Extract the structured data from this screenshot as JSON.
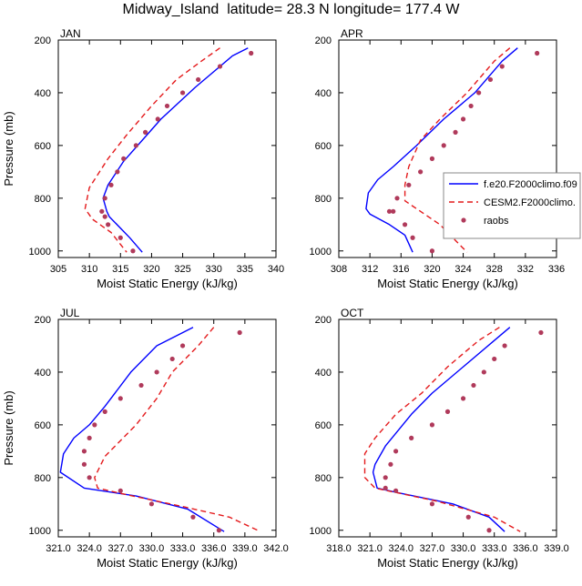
{
  "figure": {
    "title": "Midway_Island  latitude= 28.3 N longitude= 177.4 W"
  },
  "colors": {
    "model_a": "#0000ff",
    "model_b": "#e41a1c",
    "obs": "#b03a5b"
  },
  "chart_data": [
    {
      "type": "line",
      "title": "JAN",
      "xlabel": "Moist Static Energy (kJ/kg)",
      "ylabel": "Pressure (mb)",
      "xlim": [
        305,
        340
      ],
      "ylim": [
        1025,
        200
      ],
      "xticks": [
        "305",
        "310",
        "315",
        "320",
        "325",
        "330",
        "335",
        "340"
      ],
      "xtick_values": [
        305,
        310,
        315,
        320,
        325,
        330,
        335,
        340
      ],
      "yticks": [
        "200",
        "400",
        "600",
        "800",
        "1000"
      ],
      "ytick_values": [
        200,
        400,
        600,
        800,
        1000
      ],
      "grid": false,
      "legend": null,
      "series": [
        {
          "style": "solid",
          "color": "#0000ff",
          "x": [
            335.5,
            333.0,
            327.0,
            321.5,
            318.5,
            315.5,
            313.0,
            312.2,
            312.8,
            313.2,
            316.5,
            318.5
          ],
          "y": [
            230,
            260,
            380,
            500,
            580,
            660,
            750,
            800,
            850,
            870,
            950,
            1005
          ]
        },
        {
          "style": "dashed",
          "color": "#e41a1c",
          "x": [
            331.0,
            328.0,
            324.0,
            320.0,
            316.0,
            313.0,
            310.0,
            309.3,
            310.5,
            313.5,
            316.0
          ],
          "y": [
            230,
            280,
            350,
            450,
            560,
            650,
            760,
            840,
            880,
            930,
            1005
          ]
        },
        {
          "style": "dots",
          "color": "#b03a5b",
          "x": [
            336.0,
            331.0,
            327.5,
            325.0,
            322.5,
            321.0,
            319.0,
            317.5,
            315.5,
            314.5,
            313.5,
            312.5,
            312.0,
            312.5,
            313.0,
            315.0,
            317.0
          ],
          "y": [
            250,
            300,
            350,
            400,
            450,
            500,
            550,
            600,
            650,
            700,
            750,
            800,
            850,
            870,
            900,
            950,
            1000
          ]
        }
      ]
    },
    {
      "type": "line",
      "title": "APR",
      "xlabel": "Moist Static Energy (kJ/kg)",
      "ylabel": "",
      "xlim": [
        308,
        336
      ],
      "ylim": [
        1025,
        200
      ],
      "xticks": [
        "308",
        "312",
        "316",
        "320",
        "324",
        "328",
        "332",
        "336"
      ],
      "xtick_values": [
        308,
        312,
        316,
        320,
        324,
        328,
        332,
        336
      ],
      "yticks": [
        "200",
        "400",
        "600",
        "800",
        "1000"
      ],
      "ytick_values": [
        200,
        400,
        600,
        800,
        1000
      ],
      "grid": false,
      "legend": {
        "position": "right",
        "entries": [
          "f.e20.F2000climo.f09",
          "CESM2.F2000climo.",
          "raobs"
        ]
      },
      "series": [
        {
          "name": "f.e20.F2000climo.f09",
          "style": "solid",
          "color": "#0000ff",
          "x": [
            331.0,
            329.0,
            325.5,
            321.5,
            318.0,
            315.0,
            313.0,
            311.8,
            311.5,
            312.0,
            314.5,
            316.5,
            317.5
          ],
          "y": [
            230,
            280,
            400,
            500,
            600,
            680,
            730,
            780,
            840,
            860,
            900,
            940,
            1005
          ]
        },
        {
          "name": "CESM2.F2000climo.",
          "style": "dashed",
          "color": "#e41a1c",
          "x": [
            330.0,
            328.0,
            324.5,
            321.0,
            318.5,
            317.0,
            316.5,
            316.5,
            317.5,
            321.0,
            324.5
          ],
          "y": [
            230,
            280,
            400,
            500,
            580,
            680,
            750,
            810,
            830,
            900,
            1005
          ]
        },
        {
          "name": "raobs",
          "style": "dots",
          "color": "#b03a5b",
          "x": [
            333.5,
            329.0,
            327.5,
            326.0,
            325.0,
            324.0,
            323.0,
            321.5,
            320.0,
            318.5,
            317.0,
            315.5,
            315.0,
            314.5,
            316.5,
            317.5,
            320.0
          ],
          "y": [
            250,
            300,
            350,
            400,
            450,
            500,
            550,
            600,
            650,
            700,
            750,
            800,
            850,
            850,
            900,
            950,
            1000
          ]
        }
      ]
    },
    {
      "type": "line",
      "title": "JUL",
      "xlabel": "Moist Static Energy (kJ/kg)",
      "ylabel": "Pressure (mb)",
      "xlim": [
        321,
        342
      ],
      "ylim": [
        1025,
        200
      ],
      "xticks": [
        "321.0",
        "324.0",
        "327.0",
        "330.0",
        "333.0",
        "336.0",
        "339.0",
        "342.0"
      ],
      "xtick_values": [
        321,
        324,
        327,
        330,
        333,
        336,
        339,
        342
      ],
      "yticks": [
        "200",
        "400",
        "600",
        "800",
        "1000"
      ],
      "ytick_values": [
        200,
        400,
        600,
        800,
        1000
      ],
      "grid": false,
      "legend": null,
      "series": [
        {
          "style": "solid",
          "color": "#0000ff",
          "x": [
            334.0,
            330.5,
            328.0,
            325.5,
            324.0,
            322.5,
            321.5,
            321.2,
            323.5,
            328.5,
            333.5,
            337.0
          ],
          "y": [
            230,
            300,
            400,
            530,
            600,
            650,
            710,
            780,
            840,
            870,
            920,
            1005
          ]
        },
        {
          "style": "dashed",
          "color": "#e41a1c",
          "x": [
            336.0,
            334.5,
            332.0,
            330.5,
            328.5,
            325.5,
            324.5,
            324.8,
            327.0,
            333.0,
            337.5,
            340.5
          ],
          "y": [
            230,
            300,
            400,
            500,
            600,
            720,
            800,
            840,
            860,
            910,
            950,
            1005
          ]
        },
        {
          "style": "dots",
          "color": "#b03a5b",
          "x": [
            338.5,
            333.0,
            332.0,
            330.5,
            329.0,
            327.0,
            325.5,
            324.5,
            324.0,
            323.5,
            323.5,
            324.0,
            327.0,
            330.0,
            334.0,
            336.5
          ],
          "y": [
            250,
            300,
            350,
            400,
            450,
            500,
            550,
            600,
            650,
            700,
            750,
            800,
            850,
            900,
            950,
            1000
          ]
        }
      ]
    },
    {
      "type": "line",
      "title": "OCT",
      "xlabel": "Moist Static Energy (kJ/kg)",
      "ylabel": "",
      "xlim": [
        318,
        339
      ],
      "ylim": [
        1025,
        200
      ],
      "xticks": [
        "318.0",
        "321.0",
        "324.0",
        "327.0",
        "330.0",
        "333.0",
        "336.0",
        "339.0"
      ],
      "xtick_values": [
        318,
        321,
        324,
        327,
        330,
        333,
        336,
        339
      ],
      "yticks": [
        "200",
        "400",
        "600",
        "800",
        "1000"
      ],
      "ytick_values": [
        200,
        400,
        600,
        800,
        1000
      ],
      "grid": false,
      "legend": null,
      "series": [
        {
          "style": "solid",
          "color": "#0000ff",
          "x": [
            334.5,
            333.0,
            330.0,
            327.0,
            325.0,
            322.5,
            321.5,
            321.3,
            321.7,
            324.0,
            329.0,
            332.5,
            334.0
          ],
          "y": [
            230,
            280,
            380,
            480,
            560,
            680,
            750,
            780,
            840,
            860,
            900,
            950,
            1005
          ]
        },
        {
          "style": "dashed",
          "color": "#e41a1c",
          "x": [
            333.5,
            331.5,
            328.5,
            326.0,
            323.5,
            321.5,
            320.5,
            320.5,
            321.5,
            327.5,
            333.0,
            335.5
          ],
          "y": [
            230,
            280,
            380,
            480,
            560,
            650,
            710,
            800,
            840,
            890,
            950,
            1005
          ]
        },
        {
          "style": "dots",
          "color": "#b03a5b",
          "x": [
            337.5,
            334.0,
            333.0,
            332.0,
            331.0,
            330.0,
            328.5,
            327.0,
            325.0,
            323.5,
            323.0,
            322.5,
            322.5,
            323.5,
            327.0,
            330.5,
            332.5
          ],
          "y": [
            250,
            300,
            350,
            400,
            450,
            500,
            550,
            600,
            650,
            700,
            750,
            800,
            840,
            850,
            900,
            950,
            1000
          ]
        }
      ]
    }
  ]
}
